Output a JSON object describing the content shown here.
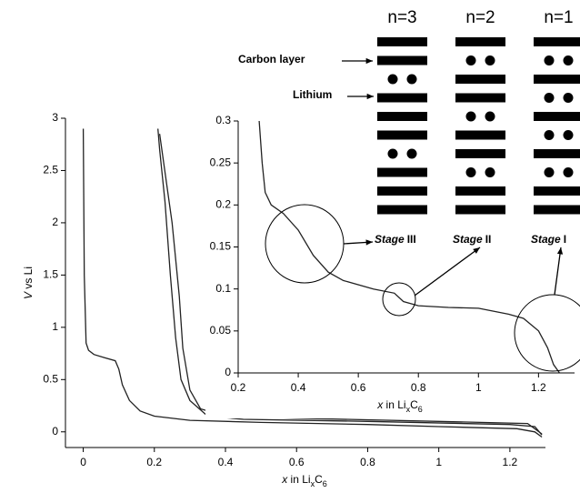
{
  "chart_data": [
    {
      "type": "line",
      "x_label": {
        "italic": "x",
        "text": " in Li",
        "sub1": "x",
        "mid": "C",
        "sub2": "6"
      },
      "y_label": {
        "italic": "V",
        "text": " vs Li"
      },
      "xlim": [
        -0.05,
        1.3
      ],
      "ylim": [
        -0.15,
        3
      ],
      "xticks": [
        0,
        0.2,
        0.4,
        0.6,
        0.8,
        1,
        1.2
      ],
      "yticks": [
        0,
        0.5,
        1,
        1.5,
        2,
        2.5,
        3
      ],
      "series": [
        {
          "color": "#222222",
          "x": [
            0,
            0.003,
            0.008,
            0.015,
            0.03,
            0.06,
            0.09,
            0.1,
            0.11,
            0.13,
            0.16,
            0.2,
            0.3,
            0.5,
            0.8,
            1.0,
            1.22,
            1.27,
            1.29
          ],
          "values": [
            2.9,
            1.5,
            0.85,
            0.78,
            0.74,
            0.71,
            0.68,
            0.6,
            0.45,
            0.3,
            0.2,
            0.15,
            0.11,
            0.09,
            0.07,
            0.05,
            0.03,
            0.0,
            -0.05
          ]
        },
        {
          "color": "#222222",
          "x": [
            0.21,
            0.215,
            0.23,
            0.245,
            0.26,
            0.275,
            0.3,
            0.35,
            0.45,
            0.8,
            1.2,
            1.27,
            1.29
          ],
          "values": [
            2.9,
            2.7,
            2.2,
            1.5,
            0.9,
            0.5,
            0.3,
            0.15,
            0.12,
            0.1,
            0.07,
            0.05,
            -0.03
          ]
        },
        {
          "color": "#222222",
          "x": [
            0.215,
            0.25,
            0.27,
            0.28,
            0.3,
            0.33,
            0.4,
            0.6,
            1.0,
            1.25,
            1.29
          ],
          "values": [
            2.85,
            2.0,
            1.3,
            0.8,
            0.4,
            0.22,
            0.15,
            0.13,
            0.1,
            0.08,
            -0.02
          ]
        }
      ]
    },
    {
      "type": "line",
      "x_label": {
        "italic": "x",
        "text": " in Li",
        "sub1": "x",
        "mid": "C",
        "sub2": "6"
      },
      "xlim": [
        0.2,
        1.32
      ],
      "ylim": [
        0,
        0.3
      ],
      "xticks": [
        0.2,
        0.4,
        0.6,
        0.8,
        1,
        1.2
      ],
      "yticks": [
        0,
        0.05,
        0.1,
        0.15,
        0.2,
        0.25,
        0.3
      ],
      "series": [
        {
          "color": "#222222",
          "x": [
            0.27,
            0.28,
            0.29,
            0.31,
            0.35,
            0.4,
            0.45,
            0.5,
            0.55,
            0.65,
            0.72,
            0.75,
            0.8,
            0.9,
            1.0,
            1.1,
            1.15,
            1.2,
            1.23,
            1.25,
            1.27
          ],
          "values": [
            0.3,
            0.25,
            0.215,
            0.2,
            0.19,
            0.17,
            0.14,
            0.12,
            0.11,
            0.1,
            0.095,
            0.085,
            0.08,
            0.078,
            0.077,
            0.07,
            0.065,
            0.05,
            0.03,
            0.01,
            0
          ]
        }
      ]
    }
  ],
  "staging_diagram": {
    "carbon_label": "Carbon layer",
    "lithium_label": "Lithium",
    "stages": [
      {
        "n": "n=3",
        "stage": "Stage",
        "roman": "III"
      },
      {
        "n": "n=2",
        "stage": "Stage",
        "roman": "II"
      },
      {
        "n": "n=1",
        "stage": "Stage",
        "roman": "I"
      }
    ]
  }
}
